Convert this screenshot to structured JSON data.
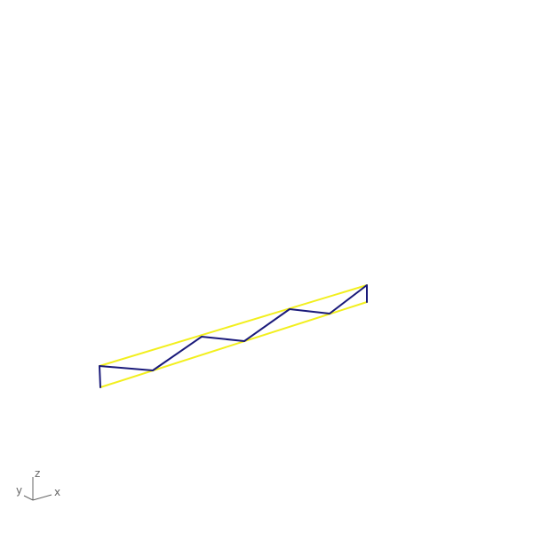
{
  "viewport": {
    "background": "#ffffff",
    "colors": {
      "frame": "#f2ef1e",
      "truss": "#1a1a7a",
      "axis": "#666666"
    }
  },
  "axis_indicator": {
    "x_label": "x",
    "y_label": "y",
    "z_label": "z"
  }
}
